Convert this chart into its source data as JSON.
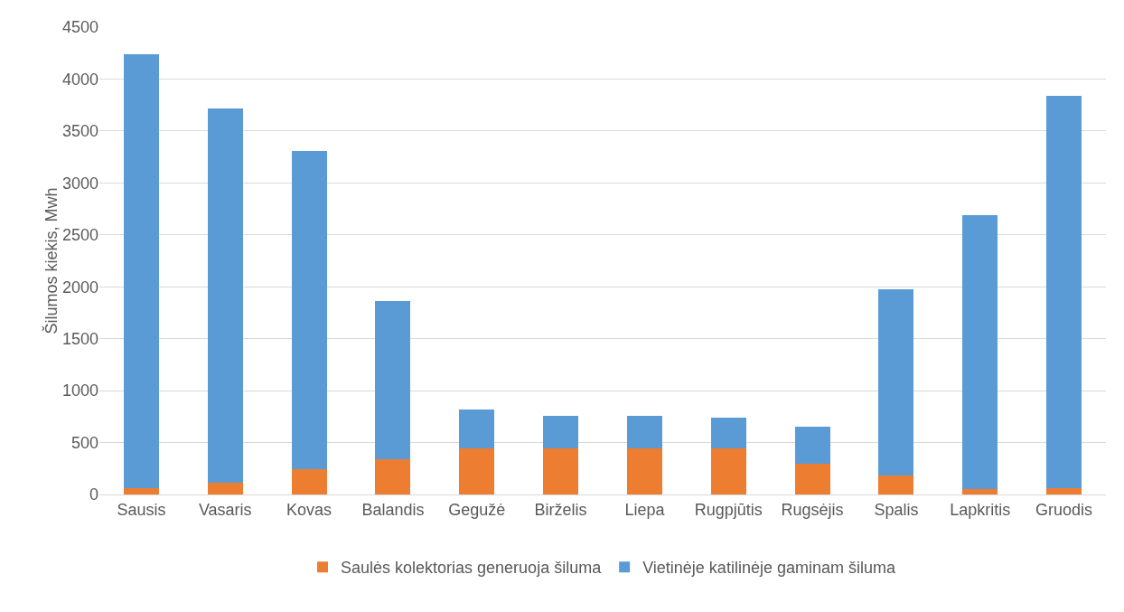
{
  "chart_data": {
    "type": "bar",
    "stacked": true,
    "ylabel": "Šilumos kiekis, Mwh",
    "categories": [
      "Sausis",
      "Vasaris",
      "Kovas",
      "Balandis",
      "Gegužė",
      "Birželis",
      "Liepa",
      "Rugpjūtis",
      "Rugsėjis",
      "Spalis",
      "Lapkritis",
      "Gruodis"
    ],
    "series": [
      {
        "name": "Saulės kolektorias generuoja šiluma",
        "color": "#ed7d31",
        "values": [
          60,
          110,
          240,
          340,
          440,
          440,
          440,
          440,
          300,
          180,
          50,
          65
        ]
      },
      {
        "name": "Vietinėje katilinėje gaminam šiluma",
        "color": "#5b9bd5",
        "values": [
          4180,
          3610,
          3070,
          1520,
          380,
          320,
          320,
          300,
          350,
          1800,
          2640,
          3770
        ]
      }
    ],
    "ylim": [
      0,
      4500
    ],
    "yticks": [
      0,
      500,
      1000,
      1500,
      2000,
      2500,
      3000,
      3500,
      4000,
      4500
    ],
    "grid": "y",
    "legend": "bottom"
  }
}
